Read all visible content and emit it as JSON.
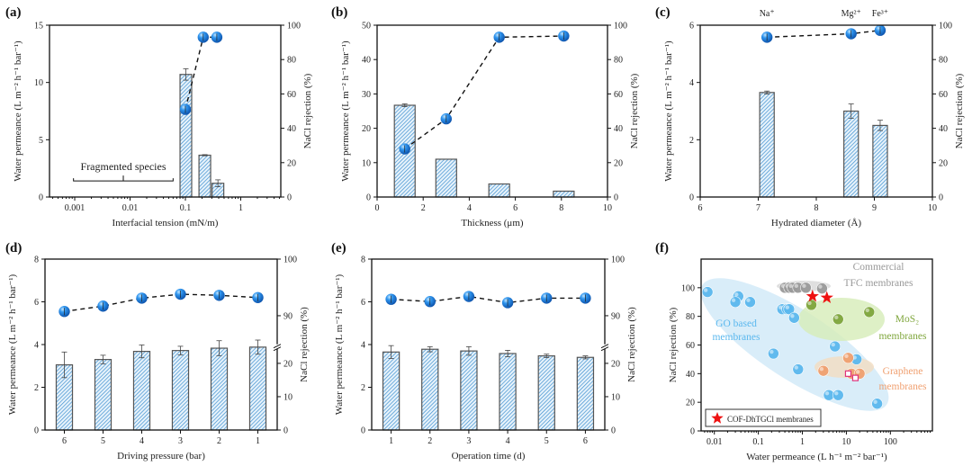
{
  "figure": {
    "panels": [
      "(a)",
      "(b)",
      "(c)",
      "(d)",
      "(e)",
      "(f)"
    ]
  },
  "chart_data": [
    {
      "type": "bar",
      "title": "(a)",
      "xlabel": "Interfacial tension (mN/m)",
      "ylabel": "Water permeance (L m⁻² h⁻¹ bar⁻¹)",
      "y2label": "NaCl rejection (%)",
      "xscale": "log",
      "xlim": [
        0.00035,
        5.3
      ],
      "xticks": [
        0.001,
        0.01,
        0.1,
        1
      ],
      "xtick_labels": [
        "0.001",
        "0.01",
        "0.1",
        "1"
      ],
      "ylim": [
        0,
        15
      ],
      "yticks": [
        0,
        5,
        10,
        15
      ],
      "ytick_labels": [
        "0",
        "5",
        "10",
        "15"
      ],
      "y2lim": [
        0,
        100
      ],
      "y2ticks": [
        0,
        20,
        40,
        60,
        80,
        100
      ],
      "y2tick_labels": [
        "0",
        "20",
        "40",
        "60",
        "80",
        "100"
      ],
      "bars": {
        "x": [
          0.1,
          0.22,
          0.38
        ],
        "values": [
          10.7,
          3.65,
          1.2
        ],
        "errors": [
          0.5,
          0.05,
          0.3
        ]
      },
      "line": {
        "x": [
          0.1,
          0.21,
          0.37
        ],
        "values": [
          51,
          93,
          93
        ],
        "errors": [
          4,
          1,
          1
        ]
      },
      "annotations": [
        {
          "text": "Fragmented species",
          "x_range": [
            0.00095,
            0.06
          ],
          "y": 1.4
        }
      ]
    },
    {
      "type": "bar",
      "title": "(b)",
      "xlabel": "Thickness (μm)",
      "ylabel": "Water permeance (L m⁻² h⁻¹ bar⁻¹)",
      "y2label": "NaCl rejection (%)",
      "xscale": "linear",
      "xlim": [
        0,
        10
      ],
      "xticks": [
        0,
        2,
        4,
        6,
        8,
        10
      ],
      "xtick_labels": [
        "0",
        "2",
        "4",
        "6",
        "8",
        "10"
      ],
      "ylim": [
        0,
        50
      ],
      "yticks": [
        0,
        10,
        20,
        30,
        40,
        50
      ],
      "ytick_labels": [
        "0",
        "10",
        "20",
        "30",
        "40",
        "50"
      ],
      "y2lim": [
        0,
        100
      ],
      "y2ticks": [
        0,
        20,
        40,
        60,
        80,
        100
      ],
      "y2tick_labels": [
        "0",
        "20",
        "40",
        "60",
        "80",
        "100"
      ],
      "bars": {
        "x": [
          1.2,
          3.0,
          5.3,
          8.1
        ],
        "values": [
          26.7,
          11.0,
          3.8,
          1.7
        ],
        "errors": [
          0.4,
          0,
          0,
          0
        ]
      },
      "line": {
        "x": [
          1.2,
          3.0,
          5.3,
          8.1
        ],
        "values": [
          28,
          45.5,
          93,
          93.7
        ],
        "errors": [
          2,
          1,
          1,
          1
        ]
      }
    },
    {
      "type": "bar",
      "title": "(c)",
      "xlabel": "Hydrated diameter (Å)",
      "ylabel": "Water permeance (L m⁻² h⁻¹ bar⁻¹)",
      "y2label": "NaCl rejection (%)",
      "xscale": "linear",
      "xlim": [
        6,
        10
      ],
      "xticks": [
        6,
        7,
        8,
        9,
        10
      ],
      "xtick_labels": [
        "6",
        "7",
        "8",
        "9",
        "10"
      ],
      "ylim": [
        0,
        6
      ],
      "yticks": [
        0,
        2,
        4,
        6
      ],
      "ytick_labels": [
        "0",
        "2",
        "4",
        "6"
      ],
      "y2lim": [
        0,
        100
      ],
      "y2ticks": [
        0,
        20,
        40,
        60,
        80,
        100
      ],
      "y2tick_labels": [
        "0",
        "20",
        "40",
        "60",
        "80",
        "100"
      ],
      "bar_labels": [
        "Na⁺",
        "Mg²⁺",
        "Fe³⁺"
      ],
      "bars": {
        "x": [
          7.15,
          8.6,
          9.1
        ],
        "values": [
          3.65,
          3.0,
          2.5
        ],
        "errors": [
          0.05,
          0.25,
          0.18
        ]
      },
      "line": {
        "x": [
          7.15,
          8.6,
          9.1
        ],
        "values": [
          93,
          95,
          97
        ],
        "errors": [
          1,
          1,
          1
        ]
      }
    },
    {
      "type": "bar",
      "title": "(d)",
      "xlabel": "Driving pressure (bar)",
      "ylabel": "Water permeance (L m⁻² h⁻¹ bar⁻¹)",
      "y2label": "NaCl rejection (%)",
      "xscale": "linear",
      "xlim": [
        0.5,
        6.5
      ],
      "xticks": [
        1,
        2,
        3,
        4,
        5,
        6
      ],
      "xtick_labels": [
        "6",
        "5",
        "4",
        "3",
        "2",
        "1"
      ],
      "ylim": [
        0,
        8
      ],
      "yticks": [
        0,
        2,
        4,
        6,
        8
      ],
      "ytick_labels": [
        "0",
        "2",
        "4",
        "6",
        "8"
      ],
      "y2_break": {
        "lower": [
          0,
          20
        ],
        "upper": [
          90,
          100
        ],
        "lower_on_left": [
          0,
          3.12
        ],
        "upper_on_left": [
          5.35,
          8
        ]
      },
      "y2ticks": [
        0,
        10,
        20,
        90,
        100
      ],
      "y2tick_labels": [
        "0",
        "10",
        "20",
        "90",
        "100"
      ],
      "bars": {
        "x": [
          1,
          2,
          3,
          4,
          5,
          6
        ],
        "values": [
          3.05,
          3.3,
          3.68,
          3.72,
          3.83,
          3.88
        ],
        "errors": [
          0.6,
          0.2,
          0.3,
          0.2,
          0.35,
          0.33
        ]
      },
      "line": {
        "x": [
          1,
          2,
          3,
          4,
          5,
          6
        ],
        "values": [
          90.75,
          91.7,
          93.1,
          93.8,
          93.6,
          93.2
        ],
        "errors": [
          0.4,
          0.4,
          0.3,
          0.3,
          0.3,
          0.3
        ]
      }
    },
    {
      "type": "bar",
      "title": "(e)",
      "xlabel": "Operation time (d)",
      "ylabel": "Water permeance (L m⁻² h⁻¹ bar⁻¹)",
      "y2label": "NaCl rejection (%)",
      "xscale": "linear",
      "xlim": [
        0.5,
        6.5
      ],
      "xticks": [
        1,
        2,
        3,
        4,
        5,
        6
      ],
      "xtick_labels": [
        "1",
        "2",
        "3",
        "4",
        "5",
        "6"
      ],
      "ylim": [
        0,
        8
      ],
      "yticks": [
        0,
        2,
        4,
        6,
        8
      ],
      "ytick_labels": [
        "0",
        "2",
        "4",
        "6",
        "8"
      ],
      "y2_break": {
        "lower": [
          0,
          20
        ],
        "upper": [
          90,
          100
        ],
        "lower_on_left": [
          0,
          3.12
        ],
        "upper_on_left": [
          5.35,
          8
        ]
      },
      "y2ticks": [
        0,
        10,
        20,
        90,
        100
      ],
      "y2tick_labels": [
        "0",
        "10",
        "20",
        "90",
        "100"
      ],
      "bars": {
        "x": [
          1,
          2,
          3,
          4,
          5,
          6
        ],
        "values": [
          3.65,
          3.78,
          3.7,
          3.58,
          3.47,
          3.4
        ],
        "errors": [
          0.3,
          0.12,
          0.2,
          0.15,
          0.08,
          0.07
        ]
      },
      "line": {
        "x": [
          1,
          2,
          3,
          4,
          5,
          6
        ],
        "values": [
          92.9,
          92.5,
          93.4,
          92.3,
          93.1,
          93.1
        ],
        "errors": [
          0.3,
          0.3,
          0.3,
          0.3,
          0.3,
          0.3
        ]
      }
    },
    {
      "type": "scatter",
      "title": "(f)",
      "xlabel": "Water permeance (L h⁻¹ m⁻² bar⁻¹)",
      "ylabel": "NaCl rejection (%)",
      "xscale": "log",
      "xlim": [
        0.005,
        900
      ],
      "xticks": [
        0.01,
        0.1,
        1,
        10,
        100
      ],
      "xtick_labels": [
        "0.01",
        "0.1",
        "1",
        "10",
        "100"
      ],
      "ylim": [
        0,
        120
      ],
      "yticks": [
        0,
        20,
        40,
        60,
        80,
        100
      ],
      "ytick_labels": [
        "0",
        "20",
        "40",
        "60",
        "80",
        "100"
      ],
      "series": [
        {
          "name": "GO based membranes",
          "label_lines": [
            "GO based",
            "membranes"
          ],
          "color": "#5bb8ee",
          "x": [
            0.007,
            0.035,
            0.03,
            0.065,
            0.35,
            0.45,
            0.5,
            0.65,
            0.22,
            0.8,
            5.5,
            17,
            4,
            6.5,
            50
          ],
          "y": [
            97,
            94,
            90,
            90,
            85,
            85,
            85,
            79,
            54,
            43,
            59,
            50,
            25,
            25,
            19
          ]
        },
        {
          "name": "Commercial TFC membranes",
          "label_lines": [
            "Commercial",
            "TFC membranes"
          ],
          "color": "#9a9a9a",
          "x": [
            0.4,
            0.5,
            0.6,
            0.8,
            1.2,
            2.8
          ],
          "y": [
            100,
            100,
            100,
            100,
            100,
            99.5
          ]
        },
        {
          "name": "MoS₂ membranes",
          "label_lines": [
            "MoS₂",
            "membranes"
          ],
          "color": "#7fa63c",
          "x": [
            1.6,
            6.5,
            33
          ],
          "y": [
            88,
            78,
            83
          ]
        },
        {
          "name": "Graphene membranes",
          "label_lines": [
            "Graphene",
            "membranes"
          ],
          "color": "#f0a070",
          "x": [
            3,
            11,
            13,
            20,
            11,
            16
          ],
          "y": [
            42,
            51,
            40,
            40,
            40,
            37
          ]
        },
        {
          "name": "COF-DhTGCl membranes",
          "color": "#ee1111",
          "marker": "star",
          "x": [
            1.7,
            3.6
          ],
          "y": [
            94,
            93
          ]
        }
      ],
      "legend": {
        "text": "COF-DhTGCl membranes",
        "position": "bottom-left"
      }
    }
  ]
}
